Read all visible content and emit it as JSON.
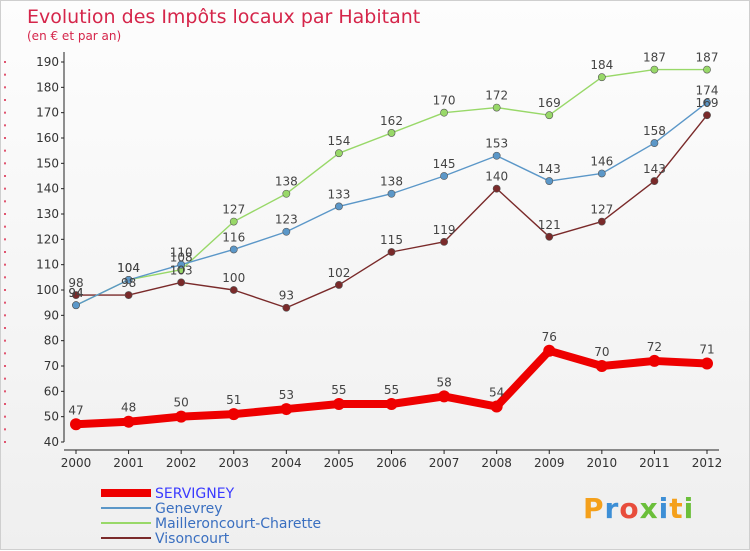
{
  "chart_data": {
    "type": "line",
    "title": "Evolution des Impôts locaux par Habitant",
    "subtitle": "(en € et par an)",
    "xlabel": "",
    "ylabel": "",
    "x": [
      "2000",
      "2001",
      "2002",
      "2003",
      "2004",
      "2005",
      "2006",
      "2007",
      "2008",
      "2009",
      "2010",
      "2011",
      "2012"
    ],
    "ylim": [
      40,
      190
    ],
    "yticks": [
      40,
      50,
      60,
      70,
      80,
      90,
      100,
      110,
      120,
      130,
      140,
      150,
      160,
      170,
      180,
      190
    ],
    "grid": false,
    "legend_position": "bottom-left",
    "series": [
      {
        "name": "SERVIGNEY",
        "color": "#ee0000",
        "values": [
          47,
          48,
          50,
          51,
          53,
          55,
          55,
          58,
          54,
          76,
          70,
          72,
          71
        ]
      },
      {
        "name": "Genevrey",
        "color": "#5b97c8",
        "values": [
          94,
          104,
          110,
          116,
          123,
          133,
          138,
          145,
          153,
          143,
          146,
          158,
          174
        ]
      },
      {
        "name": "Mailleroncourt-Charette",
        "color": "#98d868",
        "values": [
          94,
          104,
          108,
          127,
          138,
          154,
          162,
          170,
          172,
          169,
          184,
          187,
          187
        ]
      },
      {
        "name": "Visoncourt",
        "color": "#7a2a2a",
        "values": [
          98,
          98,
          103,
          100,
          93,
          102,
          115,
          119,
          140,
          121,
          127,
          143,
          169
        ]
      }
    ]
  },
  "watermark": {
    "text": "Proxiti"
  }
}
